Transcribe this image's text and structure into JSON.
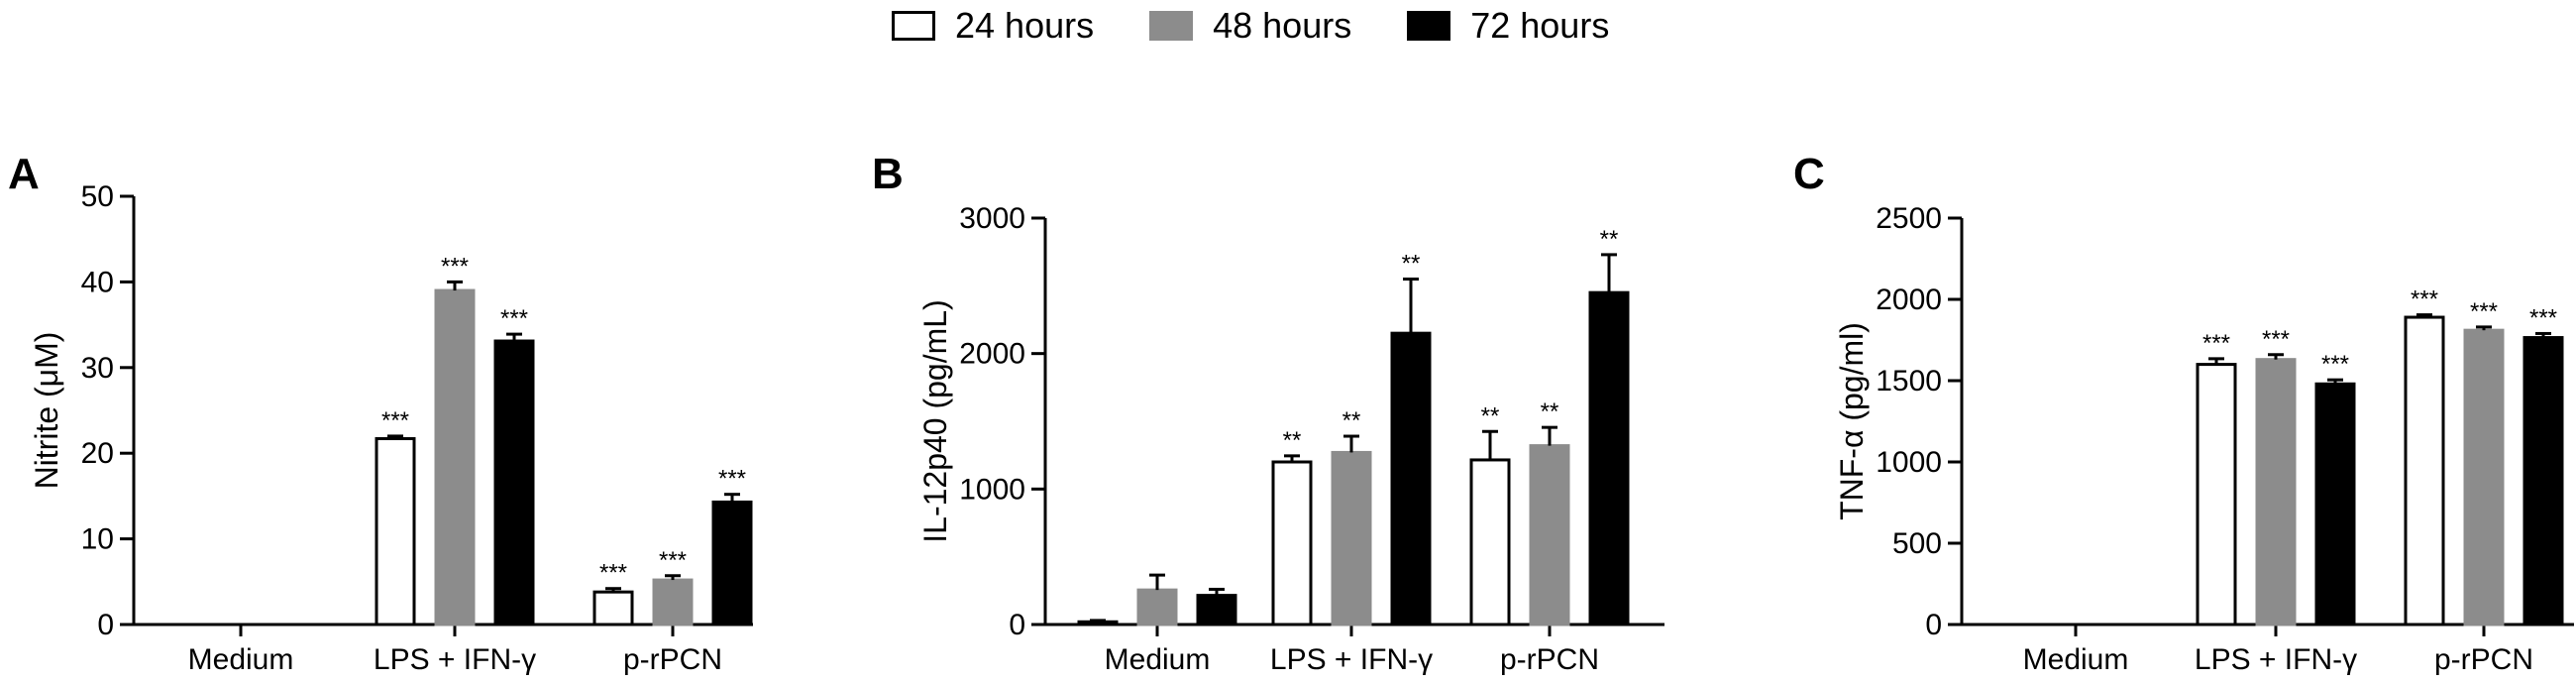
{
  "legend": [
    {
      "label": "24 hours",
      "color": "#ffffff"
    },
    {
      "label": "48 hours",
      "color": "#8c8c8c"
    },
    {
      "label": "72 hours",
      "color": "#000000"
    }
  ],
  "chart_data": [
    {
      "type": "bar",
      "panel": "A",
      "ylabel": "Nitrite (μM)",
      "ylim": [
        0,
        50
      ],
      "yticks": [
        0,
        10,
        20,
        30,
        40,
        50
      ],
      "categories": [
        "Medium",
        "LPS + IFN-γ",
        "p-rPCN"
      ],
      "series": [
        {
          "name": "24 hours",
          "values": [
            0,
            21.7,
            3.8
          ],
          "errors": [
            0,
            0.3,
            0.4
          ],
          "sig": [
            "",
            "***",
            "***"
          ]
        },
        {
          "name": "48 hours",
          "values": [
            0,
            39.0,
            5.2
          ],
          "errors": [
            0,
            1.0,
            0.5
          ],
          "sig": [
            "",
            "***",
            "***"
          ]
        },
        {
          "name": "72 hours",
          "values": [
            0,
            33.1,
            14.3
          ],
          "errors": [
            0,
            0.8,
            0.9
          ],
          "sig": [
            "",
            "***",
            "***"
          ]
        }
      ]
    },
    {
      "type": "bar",
      "panel": "B",
      "ylabel": "IL-12p40 (pg/mL)",
      "ylim": [
        0,
        3000
      ],
      "yticks": [
        0,
        1000,
        2000,
        3000
      ],
      "categories": [
        "Medium",
        "LPS + IFN-γ",
        "p-rPCN"
      ],
      "series": [
        {
          "name": "24 hours",
          "values": [
            20,
            1200,
            1215
          ],
          "errors": [
            10,
            45,
            210
          ],
          "sig": [
            "",
            "**",
            "**"
          ]
        },
        {
          "name": "48 hours",
          "values": [
            255,
            1270,
            1320
          ],
          "errors": [
            110,
            120,
            135
          ],
          "sig": [
            "",
            "**",
            "**"
          ]
        },
        {
          "name": "72 hours",
          "values": [
            215,
            2150,
            2450
          ],
          "errors": [
            45,
            400,
            280
          ],
          "sig": [
            "",
            "**",
            "**"
          ]
        }
      ]
    },
    {
      "type": "bar",
      "panel": "C",
      "ylabel": "TNF-α (pg/ml)",
      "ylim": [
        0,
        2500
      ],
      "yticks": [
        0,
        500,
        1000,
        1500,
        2000,
        2500
      ],
      "categories": [
        "Medium",
        "LPS + IFN-γ",
        "p-rPCN"
      ],
      "series": [
        {
          "name": "24 hours",
          "values": [
            0,
            1600,
            1890
          ],
          "errors": [
            0,
            35,
            15
          ],
          "sig": [
            "",
            "***",
            "***"
          ]
        },
        {
          "name": "48 hours",
          "values": [
            0,
            1630,
            1810
          ],
          "errors": [
            0,
            30,
            20
          ],
          "sig": [
            "",
            "***",
            "***"
          ]
        },
        {
          "name": "72 hours",
          "values": [
            0,
            1480,
            1765
          ],
          "errors": [
            0,
            25,
            25
          ],
          "sig": [
            "",
            "***",
            "***"
          ]
        }
      ]
    }
  ]
}
